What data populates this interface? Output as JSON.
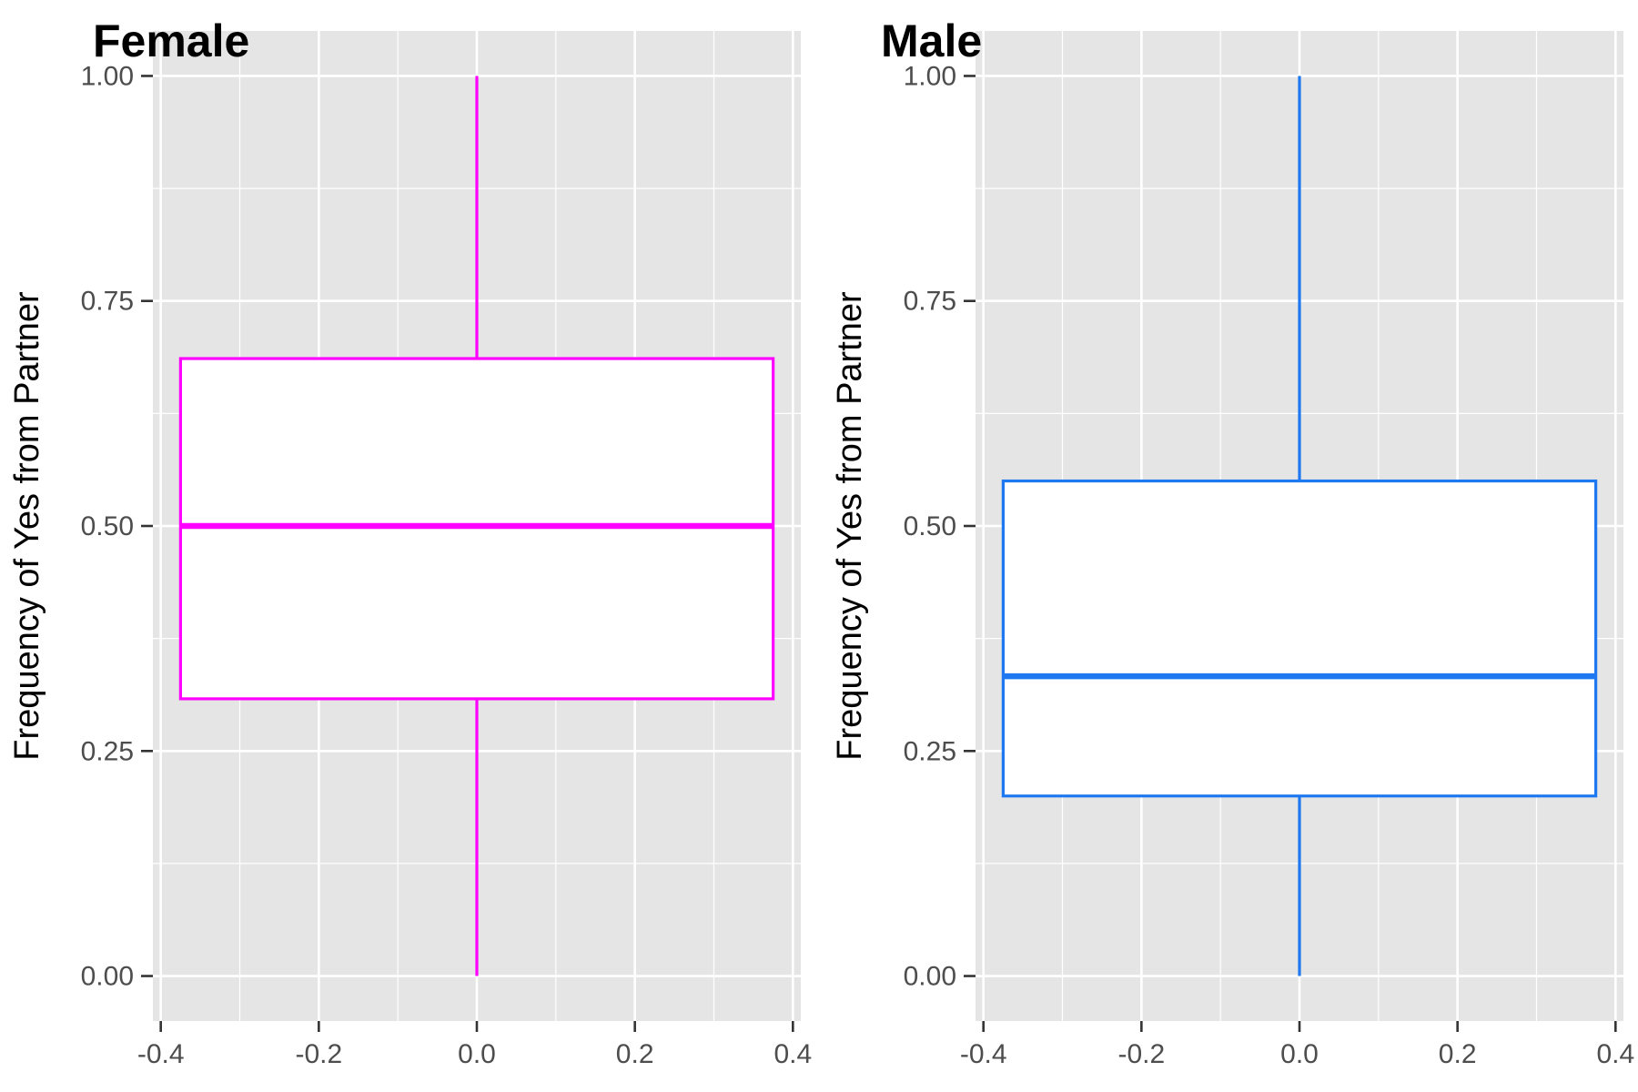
{
  "chart_data": [
    {
      "type": "box",
      "title": "Female",
      "ylabel": "Frequency of Yes from Partner",
      "xlabel": "",
      "xlim": [
        -0.41,
        0.41
      ],
      "ylim": [
        -0.05,
        1.05
      ],
      "xticks": [
        -0.4,
        -0.2,
        0.0,
        0.2,
        0.4
      ],
      "xtick_labels": [
        "-0.4",
        "-0.2",
        "0.0",
        "0.2",
        "0.4"
      ],
      "yticks": [
        0.0,
        0.25,
        0.5,
        0.75,
        1.0
      ],
      "ytick_labels": [
        "0.00",
        "0.25",
        "0.50",
        "0.75",
        "1.00"
      ],
      "grid": true,
      "color": "#FF00FF",
      "box": {
        "x_center": 0.0,
        "width": 0.75,
        "min": 0.0,
        "q1": 0.308,
        "median": 0.5,
        "q3": 0.686,
        "max": 1.0
      }
    },
    {
      "type": "box",
      "title": "Male",
      "ylabel": "Frequency of Yes from Partner",
      "xlabel": "",
      "xlim": [
        -0.41,
        0.41
      ],
      "ylim": [
        -0.05,
        1.05
      ],
      "xticks": [
        -0.4,
        -0.2,
        0.0,
        0.2,
        0.4
      ],
      "xtick_labels": [
        "-0.4",
        "-0.2",
        "0.0",
        "0.2",
        "0.4"
      ],
      "yticks": [
        0.0,
        0.25,
        0.5,
        0.75,
        1.0
      ],
      "ytick_labels": [
        "0.00",
        "0.25",
        "0.50",
        "0.75",
        "1.00"
      ],
      "grid": true,
      "color": "#1E78F0",
      "box": {
        "x_center": 0.0,
        "width": 0.75,
        "min": 0.0,
        "q1": 0.2,
        "median": 0.333,
        "q3": 0.55,
        "max": 1.0
      }
    }
  ]
}
